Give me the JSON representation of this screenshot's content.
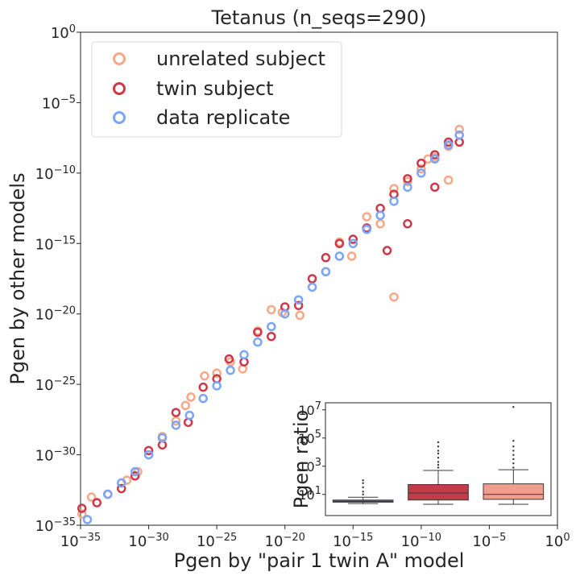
{
  "chart_data": [
    {
      "type": "scatter",
      "title": "Tetanus (n_seqs=290)",
      "xlabel": "Pgen by \"pair 1 twin A\" model",
      "ylabel": "Pgen by other models",
      "x_scale": "log",
      "y_scale": "log",
      "xlim": [
        1e-35,
        1
      ],
      "ylim": [
        1e-35,
        1
      ],
      "x_ticks": [
        {
          "base": "10",
          "exp": "−35"
        },
        {
          "base": "10",
          "exp": "−30"
        },
        {
          "base": "10",
          "exp": "−25"
        },
        {
          "base": "10",
          "exp": "−20"
        },
        {
          "base": "10",
          "exp": "−15"
        },
        {
          "base": "10",
          "exp": "−10"
        },
        {
          "base": "10",
          "exp": "−5"
        },
        {
          "base": "10",
          "exp": "0"
        }
      ],
      "y_ticks": [
        {
          "base": "10",
          "exp": "−35"
        },
        {
          "base": "10",
          "exp": "−30"
        },
        {
          "base": "10",
          "exp": "−25"
        },
        {
          "base": "10",
          "exp": "−20"
        },
        {
          "base": "10",
          "exp": "−15"
        },
        {
          "base": "10",
          "exp": "−10"
        },
        {
          "base": "10",
          "exp": "−5"
        },
        {
          "base": "10",
          "exp": "0"
        }
      ],
      "grid": false,
      "marker": "open-circle",
      "legend_position": "top-left",
      "series": [
        {
          "name": "unrelated subject",
          "color": "#f7a889",
          "log10_points": [
            [
              -34.9,
              -34.2
            ],
            [
              -34.2,
              -33.0
            ],
            [
              -32.0,
              -32.0
            ],
            [
              -31.6,
              -31.8
            ],
            [
              -30.8,
              -31.2
            ],
            [
              -30.0,
              -30.0
            ],
            [
              -29.0,
              -28.7
            ],
            [
              -28.0,
              -27.6
            ],
            [
              -27.3,
              -26.5
            ],
            [
              -26.9,
              -25.9
            ],
            [
              -25.9,
              -24.4
            ],
            [
              -25.0,
              -24.2
            ],
            [
              -24.0,
              -23.4
            ],
            [
              -23.1,
              -23.9
            ],
            [
              -22.0,
              -21.2
            ],
            [
              -21.0,
              -19.7
            ],
            [
              -20.2,
              -19.9
            ],
            [
              -18.9,
              -20.1
            ],
            [
              -17.0,
              -17.0
            ],
            [
              -16.0,
              -14.9
            ],
            [
              -15.1,
              -15.9
            ],
            [
              -14.0,
              -13.1
            ],
            [
              -13.0,
              -13.6
            ],
            [
              -12.0,
              -11.1
            ],
            [
              -11.0,
              -10.6
            ],
            [
              -10.0,
              -9.7
            ],
            [
              -9.0,
              -8.9
            ],
            [
              -8.0,
              -8.1
            ],
            [
              -7.2,
              -6.9
            ],
            [
              -12.0,
              -18.8
            ],
            [
              -8.0,
              -10.5
            ],
            [
              -9.5,
              -9.0
            ]
          ]
        },
        {
          "name": "twin subject",
          "color": "#cc3a4a",
          "log10_points": [
            [
              -34.9,
              -33.8
            ],
            [
              -33.8,
              -33.4
            ],
            [
              -33.0,
              -32.8
            ],
            [
              -32.0,
              -32.4
            ],
            [
              -31.0,
              -31.5
            ],
            [
              -30.0,
              -29.7
            ],
            [
              -29.0,
              -29.3
            ],
            [
              -28.0,
              -27.0
            ],
            [
              -27.1,
              -27.7
            ],
            [
              -26.0,
              -25.2
            ],
            [
              -25.0,
              -24.6
            ],
            [
              -24.1,
              -23.2
            ],
            [
              -23.0,
              -23.4
            ],
            [
              -22.0,
              -21.3
            ],
            [
              -21.0,
              -21.6
            ],
            [
              -20.0,
              -19.5
            ],
            [
              -19.0,
              -19.4
            ],
            [
              -18.0,
              -17.5
            ],
            [
              -17.0,
              -16.0
            ],
            [
              -16.0,
              -15.0
            ],
            [
              -15.0,
              -14.7
            ],
            [
              -14.0,
              -13.9
            ],
            [
              -13.0,
              -12.5
            ],
            [
              -12.0,
              -11.5
            ],
            [
              -11.0,
              -10.4
            ],
            [
              -10.0,
              -9.3
            ],
            [
              -9.0,
              -8.7
            ],
            [
              -8.0,
              -7.8
            ],
            [
              -7.2,
              -7.8
            ],
            [
              -11.0,
              -13.6
            ],
            [
              -9.0,
              -11.0
            ],
            [
              -12.5,
              -15.5
            ]
          ]
        },
        {
          "name": "data replicate",
          "color": "#7aa6f5",
          "log10_points": [
            [
              -34.5,
              -34.6
            ],
            [
              -33.0,
              -32.8
            ],
            [
              -32.0,
              -32.0
            ],
            [
              -31.0,
              -31.2
            ],
            [
              -30.0,
              -30.0
            ],
            [
              -29.0,
              -28.8
            ],
            [
              -28.0,
              -27.9
            ],
            [
              -27.0,
              -27.2
            ],
            [
              -26.0,
              -26.0
            ],
            [
              -25.0,
              -25.1
            ],
            [
              -24.0,
              -24.0
            ],
            [
              -23.0,
              -22.9
            ],
            [
              -22.0,
              -22.0
            ],
            [
              -21.0,
              -20.9
            ],
            [
              -20.0,
              -20.0
            ],
            [
              -19.0,
              -19.0
            ],
            [
              -18.0,
              -18.1
            ],
            [
              -17.0,
              -17.0
            ],
            [
              -16.0,
              -15.9
            ],
            [
              -15.0,
              -15.0
            ],
            [
              -14.0,
              -14.0
            ],
            [
              -13.0,
              -13.0
            ],
            [
              -12.0,
              -12.0
            ],
            [
              -11.0,
              -11.0
            ],
            [
              -10.0,
              -10.0
            ],
            [
              -9.0,
              -9.0
            ],
            [
              -8.0,
              -8.0
            ],
            [
              -7.2,
              -7.3
            ]
          ]
        }
      ]
    },
    {
      "type": "box",
      "ylabel": "Pgen ratio",
      "y_scale": "log",
      "ylim_log10": [
        -0.5,
        7.5
      ],
      "y_ticks": [
        {
          "base": "10",
          "exp": "1"
        },
        {
          "base": "10",
          "exp": "3"
        },
        {
          "base": "10",
          "exp": "5"
        },
        {
          "base": "10",
          "exp": "7"
        }
      ],
      "boxes": [
        {
          "color": "#5a5a7a",
          "log10_q1": 0.45,
          "log10_median": 0.5,
          "log10_q3": 0.6,
          "log10_whisker_low": 0.35,
          "log10_whisker_high": 0.8,
          "log10_outliers": [
            1.0,
            1.2,
            1.5,
            1.8,
            2.0
          ]
        },
        {
          "color": "#c23b48",
          "log10_q1": 0.6,
          "log10_median": 1.1,
          "log10_q3": 1.7,
          "log10_whisker_low": 0.3,
          "log10_whisker_high": 2.7,
          "log10_outliers": [
            2.9,
            3.1,
            3.3,
            3.6,
            3.9,
            4.1,
            4.4,
            4.7
          ]
        },
        {
          "color": "#f19e8e",
          "log10_q1": 0.65,
          "log10_median": 1.0,
          "log10_q3": 1.75,
          "log10_whisker_low": 0.3,
          "log10_whisker_high": 2.75,
          "log10_outliers": [
            2.9,
            3.2,
            3.5,
            3.8,
            4.1,
            4.4,
            4.8,
            7.2
          ]
        }
      ]
    }
  ]
}
